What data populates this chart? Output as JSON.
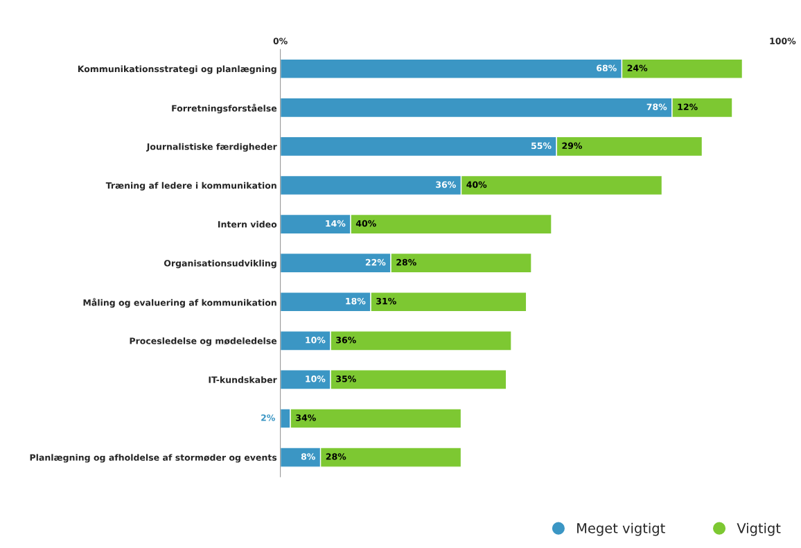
{
  "chart_data": {
    "type": "bar",
    "orientation": "horizontal",
    "stacked": true,
    "categories": [
      "Kommunikationsstrategi og planlægning",
      "Forretningsforståelse",
      "Journalistiske færdigheder",
      "Træning af ledere i kommunikation",
      "Intern video",
      "Organisationsudvikling",
      "Måling og evaluering af kommunikation",
      "Procesledelse og mødeledelse",
      "IT-kundskaber",
      null,
      "Planlægning og afholdelse af stormøder og events"
    ],
    "series": [
      {
        "name": "Meget vigtigt",
        "color": "#3b96c4",
        "values": [
          68,
          78,
          55,
          36,
          14,
          22,
          18,
          10,
          10,
          2,
          8
        ],
        "value_labels": [
          "68%",
          "78%",
          "55%",
          "36%",
          "14%",
          "22%",
          "18%",
          "10%",
          "10%",
          "2%",
          "8%"
        ]
      },
      {
        "name": "Vigtigt",
        "color": "#7dc832",
        "values": [
          24,
          12,
          29,
          40,
          40,
          28,
          31,
          36,
          35,
          34,
          28
        ],
        "value_labels": [
          "24%",
          "12%",
          "29%",
          "40%",
          "40%",
          "28%",
          "31%",
          "36%",
          "35%",
          "34%",
          "28%"
        ]
      }
    ],
    "xlim": [
      0,
      100
    ],
    "xticks": [
      {
        "value": 0,
        "label": "0%"
      },
      {
        "value": 100,
        "label": "100%"
      }
    ],
    "grid": false,
    "legend": "bottom right"
  }
}
